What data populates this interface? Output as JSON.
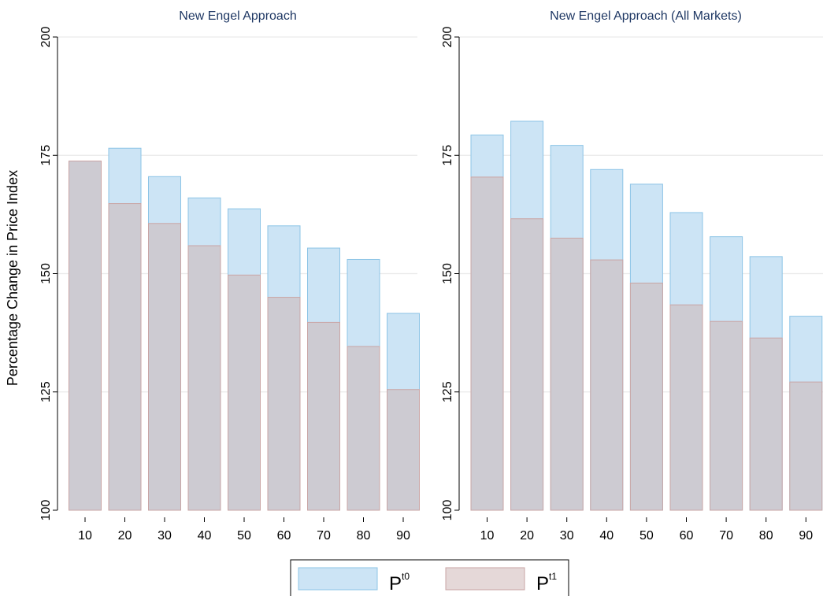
{
  "ylabel": "Percentage Change in Price Index",
  "legend": {
    "placement": "bottom-center",
    "items": [
      {
        "base": "P",
        "sup": "t0",
        "fill": "#cce4f5",
        "stroke": "#8cc4e6"
      },
      {
        "base": "P",
        "sup": "t1",
        "fill": "#e5d8d8",
        "stroke": "#c9a5a5"
      }
    ]
  },
  "colors": {
    "title": "#1f3864",
    "pt0_fill": "#cce4f5",
    "pt0_stroke": "#8cc4e6",
    "pt1_fill": "#cdcbd2",
    "pt1_stroke": "#c9a5a5",
    "grid": "#eaeaea"
  },
  "chart_data": [
    {
      "type": "bar",
      "title": "New Engel Approach",
      "categories": [
        "10",
        "20",
        "30",
        "40",
        "50",
        "60",
        "70",
        "80",
        "90"
      ],
      "ylim": [
        100,
        200
      ],
      "yticks": [
        "100",
        "125",
        "150",
        "175",
        "200"
      ],
      "grid": true,
      "series": [
        {
          "name": "Pt0",
          "values": [
            173.3,
            176.5,
            170.5,
            166.0,
            163.7,
            160.1,
            155.4,
            153.0,
            141.6
          ]
        },
        {
          "name": "Pt1",
          "values": [
            173.8,
            164.8,
            160.6,
            155.9,
            149.7,
            145.0,
            139.7,
            134.6,
            125.5
          ]
        }
      ]
    },
    {
      "type": "bar",
      "title": "New Engel Approach (All Markets)",
      "categories": [
        "10",
        "20",
        "30",
        "40",
        "50",
        "60",
        "70",
        "80",
        "90"
      ],
      "ylim": [
        100,
        200
      ],
      "yticks": [
        "100",
        "125",
        "150",
        "175",
        "200"
      ],
      "grid": true,
      "series": [
        {
          "name": "Pt0",
          "values": [
            179.3,
            182.2,
            177.1,
            172.0,
            168.9,
            162.9,
            157.8,
            153.6,
            141.0
          ]
        },
        {
          "name": "Pt1",
          "values": [
            170.4,
            161.6,
            157.5,
            152.9,
            148.0,
            143.4,
            139.9,
            136.4,
            127.1
          ]
        }
      ]
    }
  ]
}
